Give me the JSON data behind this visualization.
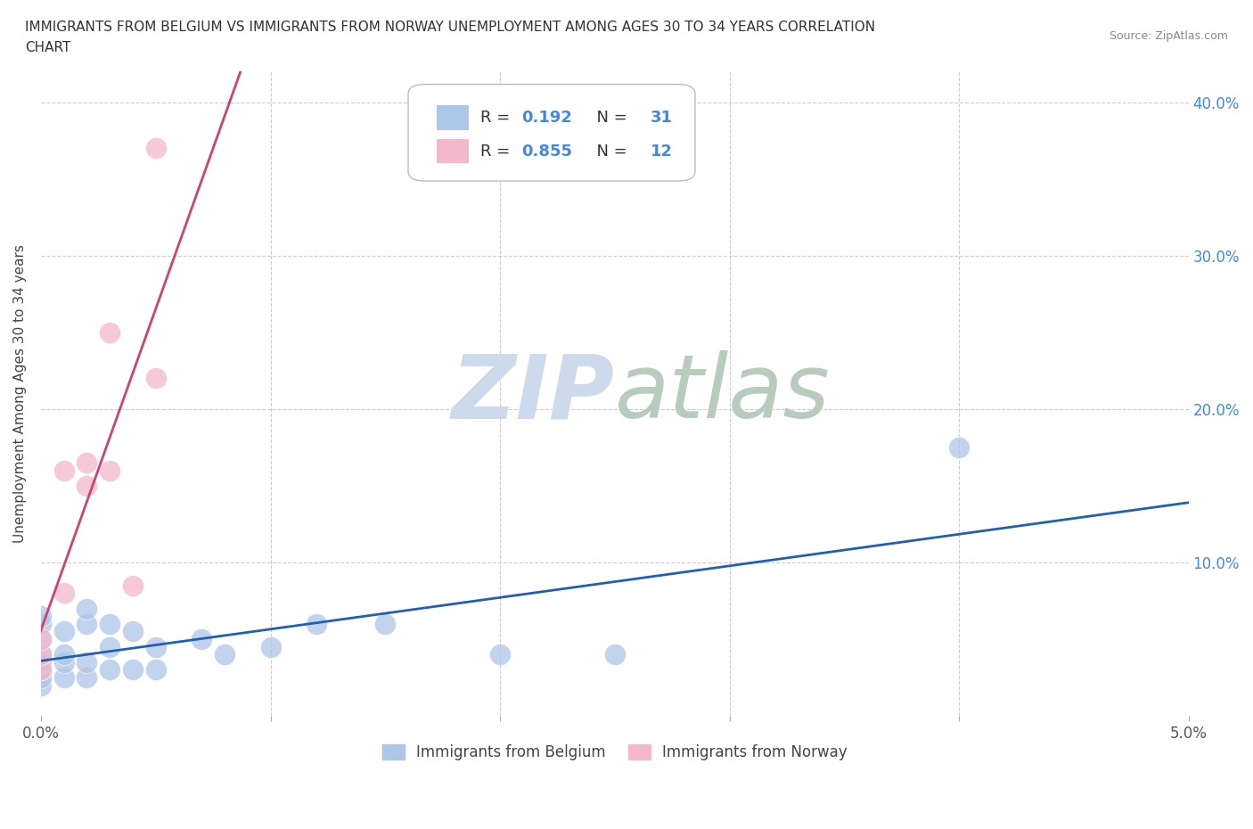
{
  "title_line1": "IMMIGRANTS FROM BELGIUM VS IMMIGRANTS FROM NORWAY UNEMPLOYMENT AMONG AGES 30 TO 34 YEARS CORRELATION",
  "title_line2": "CHART",
  "source": "Source: ZipAtlas.com",
  "ylabel": "Unemployment Among Ages 30 to 34 years",
  "xlim": [
    0.0,
    0.05
  ],
  "ylim": [
    0.0,
    0.42
  ],
  "belgium_color": "#aec6e8",
  "norway_color": "#f4b8cc",
  "belgium_line_color": "#2060b0",
  "norway_line_color": "#d04070",
  "belgium_R": 0.192,
  "belgium_N": 31,
  "norway_R": 0.855,
  "norway_N": 12,
  "watermark_zip": "ZIP",
  "watermark_atlas": "atlas",
  "watermark_color_zip": "#c5d5e8",
  "watermark_color_atlas": "#b8d0c8",
  "background_color": "#ffffff",
  "grid_color": "#cccccc",
  "belgium_x": [
    0.0,
    0.0,
    0.0,
    0.0,
    0.0,
    0.0,
    0.0,
    0.0,
    0.001,
    0.001,
    0.001,
    0.001,
    0.002,
    0.002,
    0.002,
    0.002,
    0.003,
    0.003,
    0.003,
    0.004,
    0.004,
    0.005,
    0.005,
    0.007,
    0.008,
    0.01,
    0.012,
    0.015,
    0.02,
    0.025,
    0.04
  ],
  "belgium_y": [
    0.02,
    0.025,
    0.03,
    0.035,
    0.04,
    0.05,
    0.06,
    0.065,
    0.025,
    0.035,
    0.04,
    0.055,
    0.025,
    0.035,
    0.06,
    0.07,
    0.03,
    0.045,
    0.06,
    0.03,
    0.055,
    0.03,
    0.045,
    0.05,
    0.04,
    0.045,
    0.06,
    0.06,
    0.04,
    0.04,
    0.175
  ],
  "norway_x": [
    0.0,
    0.0,
    0.0,
    0.001,
    0.001,
    0.002,
    0.002,
    0.003,
    0.003,
    0.004,
    0.005,
    0.005
  ],
  "norway_y": [
    0.03,
    0.04,
    0.05,
    0.08,
    0.16,
    0.15,
    0.165,
    0.16,
    0.25,
    0.085,
    0.22,
    0.37
  ]
}
